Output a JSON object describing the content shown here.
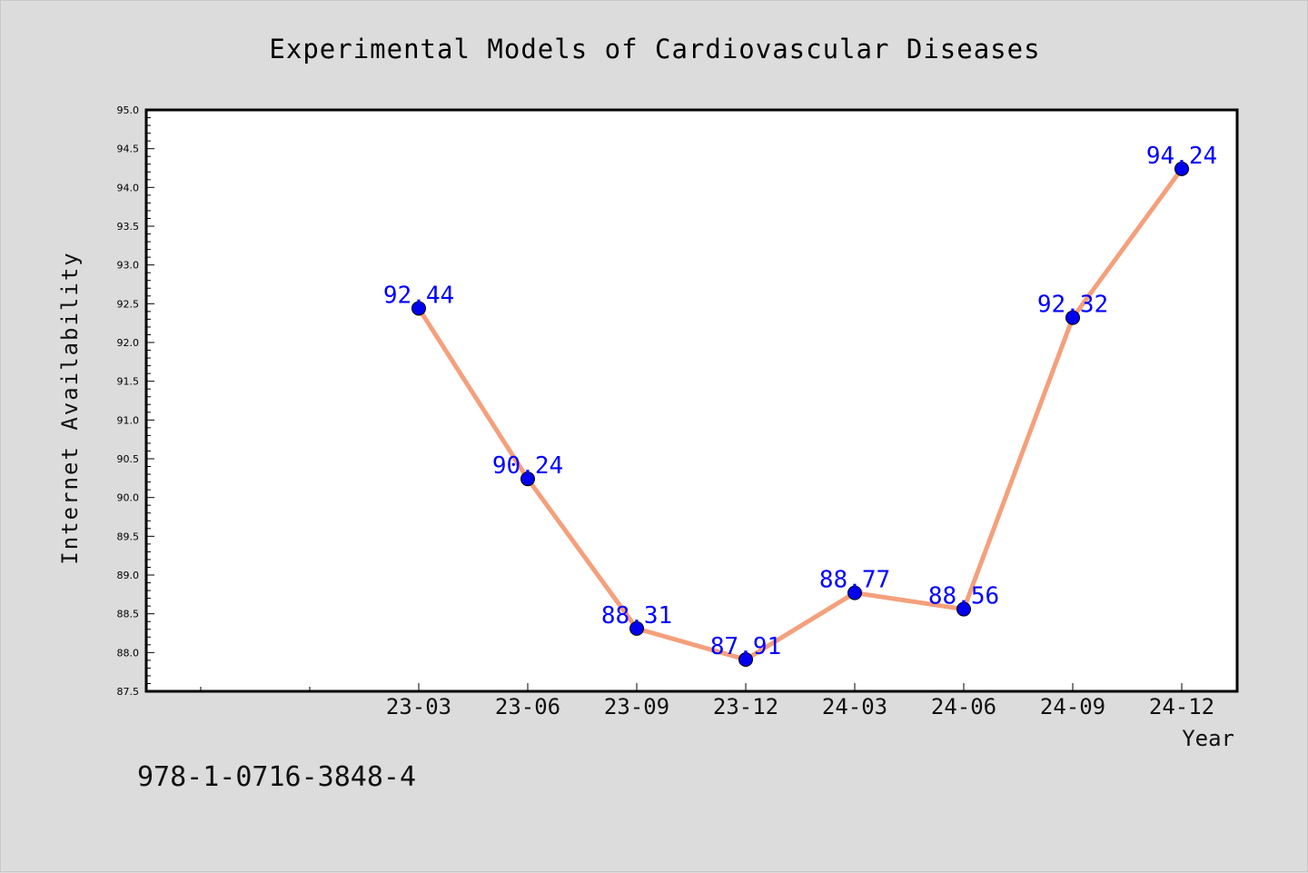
{
  "chart_data": {
    "type": "line",
    "title": "Experimental Models of Cardiovascular Diseases",
    "xlabel": "Year",
    "ylabel": "Internet Availability",
    "categories": [
      "23-03",
      "23-06",
      "23-09",
      "23-12",
      "24-03",
      "24-06",
      "24-09",
      "24-12"
    ],
    "series": [
      {
        "values": [
          92.44,
          90.24,
          88.31,
          87.91,
          88.77,
          88.56,
          92.32,
          94.24
        ],
        "labels": [
          "92.44",
          "90.24",
          "88.31",
          "87.91",
          "88.77",
          "88.56",
          "92.32",
          "94.24"
        ]
      }
    ],
    "ylim": [
      87.5,
      95.0
    ],
    "yticks": [
      "87.5",
      "88.0",
      "88.5",
      "89.0",
      "89.5",
      "90.0",
      "90.5",
      "91.0",
      "91.5",
      "92.0",
      "92.5",
      "93.0",
      "93.5",
      "94.0",
      "94.5",
      "95.0"
    ],
    "grid": false,
    "legend": "none",
    "colors": {
      "line": "#f4a07c",
      "marker": "#0000ee",
      "labels": "#0000ff",
      "background": "#dcdcdc",
      "plot_background": "#ffffff"
    }
  },
  "footnote": "978-1-0716-3848-4"
}
